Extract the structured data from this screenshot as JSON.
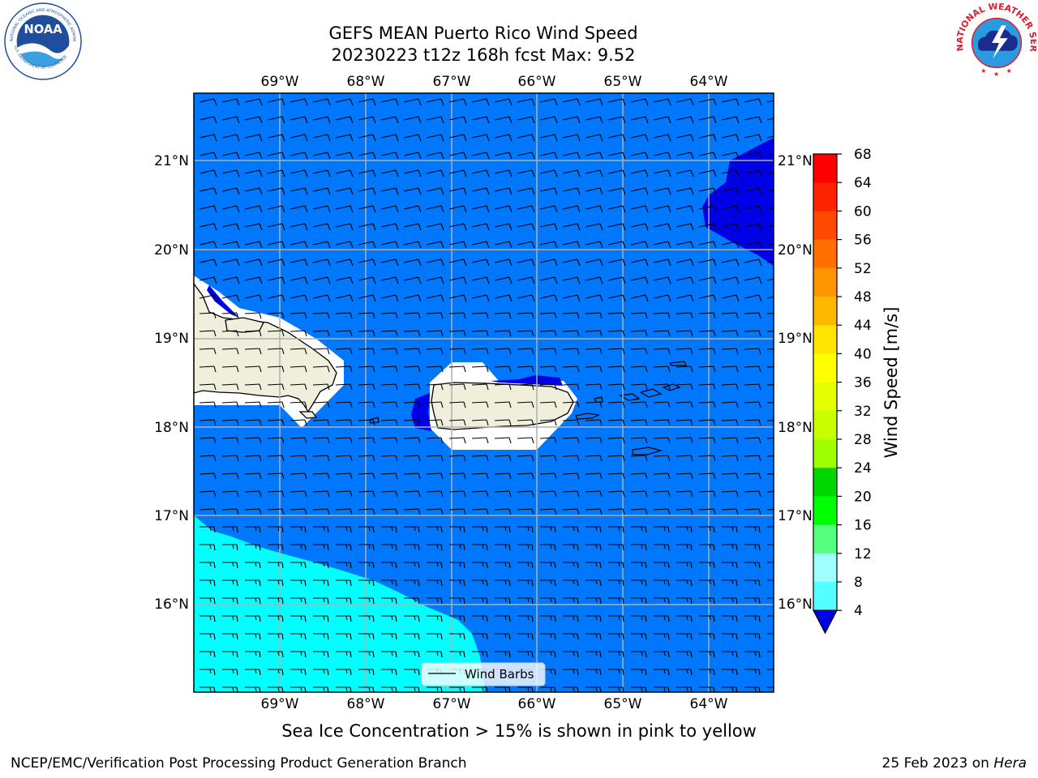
{
  "header": {
    "title_line1": "GEFS MEAN Puerto Rico Wind Speed",
    "title_line2": "20230223 t12z 168h fcst   Max: 9.52"
  },
  "logos": {
    "noaa_text": "NOAA",
    "noaa_ring_text": "NATIONAL OCEANIC AND ATMOSPHERIC ADMINISTRATION",
    "noaa_ring_text_bottom": "U.S. DEPARTMENT OF COMMERCE",
    "nws_ring_text": "NATIONAL WEATHER SERVICE"
  },
  "map": {
    "lon_labels": [
      "69°W",
      "68°W",
      "67°W",
      "66°W",
      "65°W",
      "64°W"
    ],
    "lat_labels": [
      "21°N",
      "20°N",
      "19°N",
      "18°N",
      "17°N",
      "16°N"
    ],
    "legend_label": "Wind Barbs",
    "colors": {
      "band_4_8": "#0077ff",
      "band_8_12": "#00ffff",
      "below_4": "#0000e6",
      "land": "#efefdc"
    }
  },
  "colorbar": {
    "label": "Wind Speed [m/s]",
    "ticks": [
      "68",
      "64",
      "60",
      "56",
      "52",
      "48",
      "44",
      "40",
      "36",
      "32",
      "28",
      "24",
      "20",
      "16",
      "12",
      "8",
      "4"
    ],
    "colors": [
      "#ff0000",
      "#ff2400",
      "#ff4800",
      "#ff7000",
      "#ff9600",
      "#ffb800",
      "#ffe400",
      "#ffff00",
      "#e6ff00",
      "#c8ff00",
      "#a0ff00",
      "#00d600",
      "#00ff00",
      "#55ff80",
      "#a0ffff",
      "#55ffff",
      "#00ffff",
      "#0077ff"
    ],
    "under_color": "#0000e6"
  },
  "subtitle": "Sea Ice Concentration > 15% is shown in pink to yellow",
  "footer": {
    "left": "NCEP/EMC/Verification Post Processing Product Generation Branch",
    "date": "25 Feb 2023 on ",
    "host": "Hera"
  }
}
